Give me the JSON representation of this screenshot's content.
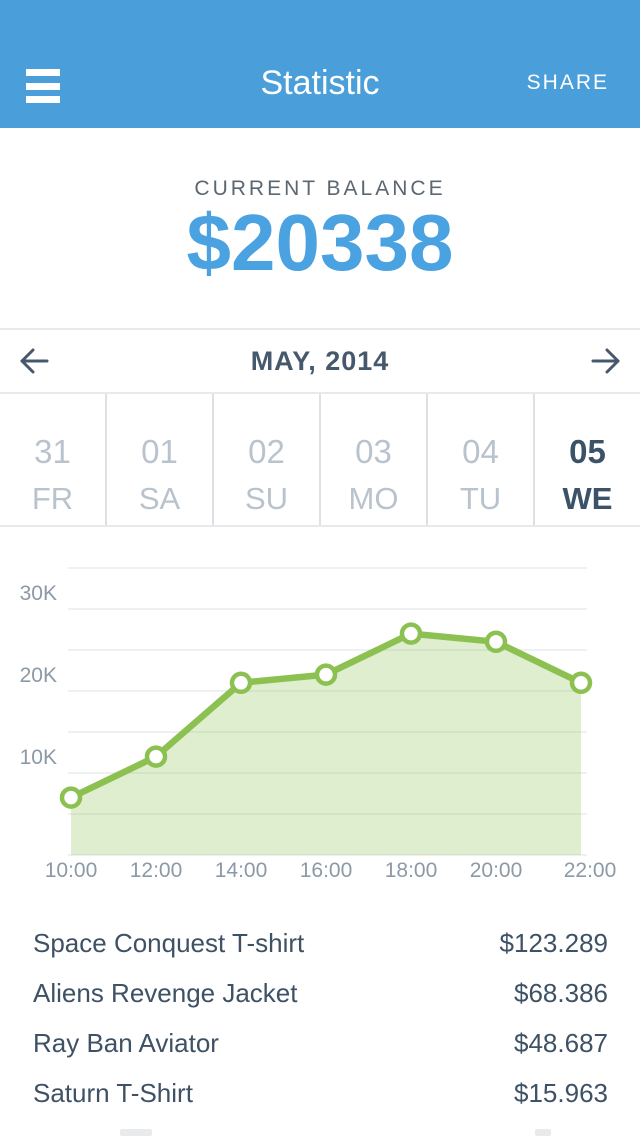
{
  "header": {
    "title": "Statistic",
    "share_label": "SHARE"
  },
  "balance": {
    "label": "CURRENT BALANCE",
    "amount": "$20338"
  },
  "month_nav": {
    "label": "MAY, 2014"
  },
  "days": [
    {
      "date": "31",
      "weekday": "FR",
      "active": false
    },
    {
      "date": "01",
      "weekday": "SA",
      "active": false
    },
    {
      "date": "02",
      "weekday": "SU",
      "active": false
    },
    {
      "date": "03",
      "weekday": "MO",
      "active": false
    },
    {
      "date": "04",
      "weekday": "TU",
      "active": false
    },
    {
      "date": "05",
      "weekday": "WE",
      "active": true
    }
  ],
  "chart_data": {
    "type": "area",
    "x": [
      "10:00",
      "12:00",
      "14:00",
      "16:00",
      "18:00",
      "20:00",
      "22:00"
    ],
    "series": [
      {
        "name": "balance",
        "values": [
          7000,
          12000,
          21000,
          22000,
          27000,
          26000,
          21000
        ]
      }
    ],
    "ylim": [
      0,
      35000
    ],
    "grid_step": 5000,
    "y_ticks": [
      {
        "value": 10000,
        "label": "10K"
      },
      {
        "value": 20000,
        "label": "20K"
      },
      {
        "value": 30000,
        "label": "30K"
      }
    ],
    "grid": true,
    "legend": "none",
    "line_color": "#8CC152",
    "fill_color": "#8CC152",
    "fill_opacity": 0.28,
    "marker": "circle-white"
  },
  "products": [
    {
      "name": "Space Conquest T-shirt",
      "price": "$123.289"
    },
    {
      "name": "Aliens Revenge Jacket",
      "price": "$68.386"
    },
    {
      "name": "Ray Ban Aviator",
      "price": "$48.687"
    },
    {
      "name": "Saturn T-Shirt",
      "price": "$15.963"
    }
  ],
  "colors": {
    "header_bg": "#4A9FDB",
    "balance_amount": "#4AA2E0",
    "accent_green": "#8CC152",
    "active_day": "#3B5268",
    "inactive_day": "#B9C3CD",
    "axis_label": "#8C99A7",
    "row_text": "#3E5165"
  }
}
